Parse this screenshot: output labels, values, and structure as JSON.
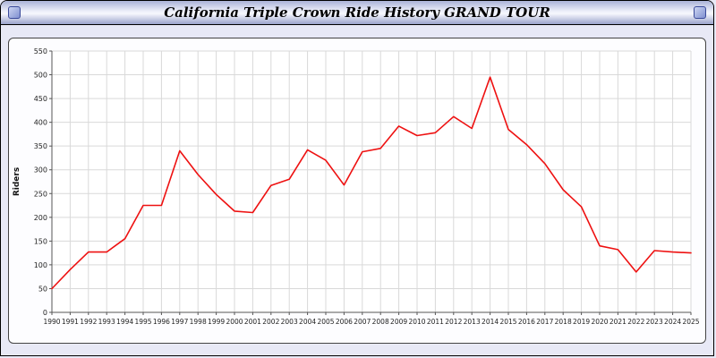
{
  "title": "California Triple Crown Ride History GRAND TOUR",
  "icons": {
    "left": "window-badge-icon",
    "right": "window-badge-icon"
  },
  "chart_data": {
    "type": "line",
    "title": "California Triple Crown Ride History GRAND TOUR",
    "xlabel": "",
    "ylabel": "Riders",
    "ylim": [
      0,
      550
    ],
    "ytick_step": 50,
    "grid": true,
    "legend_position": "none",
    "line_color": "#ee1111",
    "categories": [
      1990,
      1991,
      1992,
      1993,
      1994,
      1995,
      1996,
      1997,
      1998,
      1999,
      2000,
      2001,
      2002,
      2003,
      2004,
      2005,
      2006,
      2007,
      2008,
      2009,
      2010,
      2011,
      2012,
      2013,
      2014,
      2015,
      2016,
      2017,
      2018,
      2019,
      2020,
      2021,
      2022,
      2023,
      2024,
      2025
    ],
    "series": [
      {
        "name": "Riders",
        "values": [
          50,
          90,
          127,
          127,
          155,
          225,
          225,
          340,
          290,
          248,
          213,
          210,
          267,
          280,
          342,
          320,
          268,
          338,
          345,
          392,
          372,
          378,
          412,
          387,
          495,
          385,
          353,
          313,
          258,
          222,
          140,
          132,
          85,
          130,
          127,
          125
        ]
      }
    ]
  }
}
